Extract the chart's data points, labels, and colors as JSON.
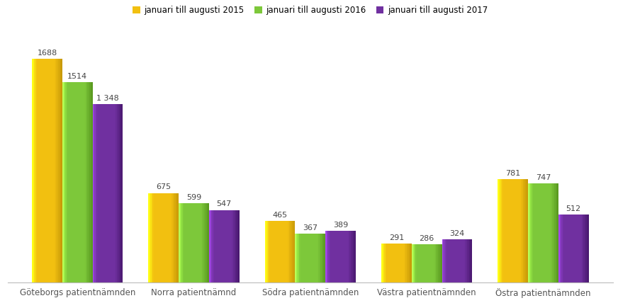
{
  "categories": [
    "Göteborgs patientnämnden",
    "Norra patientnämnd",
    "Södra patientnämnden",
    "Västra patientnämnden",
    "Östra patientnämnden"
  ],
  "series": [
    {
      "label": "januari till augusti 2015",
      "values": [
        1688,
        675,
        465,
        291,
        781
      ],
      "color": "#F2C010",
      "color_dark": "#C89A08"
    },
    {
      "label": "januari till augusti 2016",
      "values": [
        1514,
        599,
        367,
        286,
        747
      ],
      "color": "#7DC83A",
      "color_dark": "#5A9A20"
    },
    {
      "label": "januari till augusti 2017",
      "values": [
        1348,
        547,
        389,
        324,
        512
      ],
      "color": "#7030A0",
      "color_dark": "#4A1870"
    }
  ],
  "ylim": [
    0,
    1900
  ],
  "bar_width": 0.26,
  "background_color": "#ffffff",
  "label_fontsize": 8.0,
  "tick_fontsize": 8.5,
  "legend_fontsize": 8.5,
  "special_labels": {
    "1348": "1 348"
  }
}
